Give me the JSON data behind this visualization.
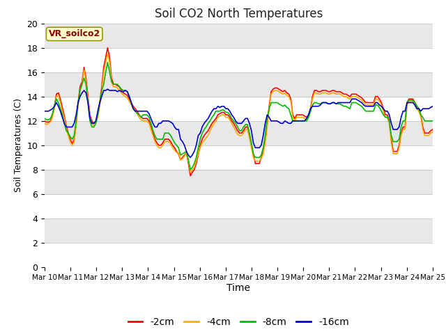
{
  "title": "Soil CO2 North Temperatures",
  "xlabel": "Time",
  "ylabel": "Soil Temperatures (C)",
  "ylim": [
    0,
    20
  ],
  "bg_color": "#e8e8e8",
  "fig_color": "#ffffff",
  "annotation_label": "VR_soilco2",
  "annotation_color": "#880000",
  "annotation_bg": "#ffffcc",
  "annotation_border": "#999900",
  "xtick_labels": [
    "Mar 10",
    "Mar 11",
    "Mar 12",
    "Mar 13",
    "Mar 14",
    "Mar 15",
    "Mar 16",
    "Mar 17",
    "Mar 18",
    "Mar 19",
    "Mar 20",
    "Mar 21",
    "Mar 22",
    "Mar 23",
    "Mar 24",
    "Mar 25"
  ],
  "legend_entries": [
    "-2cm",
    "-4cm",
    "-8cm",
    "-16cm"
  ],
  "line_colors": [
    "#ff0000",
    "#ffaa00",
    "#00bb00",
    "#0000cc"
  ],
  "d2cm": [
    12.0,
    11.9,
    11.9,
    12.0,
    12.5,
    13.2,
    14.2,
    14.3,
    13.8,
    13.1,
    12.4,
    11.6,
    11.0,
    10.5,
    10.1,
    10.5,
    11.8,
    13.5,
    14.8,
    15.2,
    16.4,
    15.5,
    14.0,
    12.5,
    12.0,
    11.8,
    11.9,
    12.5,
    13.5,
    14.8,
    16.4,
    17.2,
    18.0,
    17.2,
    15.5,
    15.0,
    15.0,
    14.9,
    14.8,
    14.5,
    14.3,
    14.2,
    14.1,
    13.8,
    13.5,
    13.2,
    13.0,
    12.8,
    12.5,
    12.3,
    12.2,
    12.2,
    12.2,
    12.0,
    11.5,
    11.0,
    10.5,
    10.2,
    10.0,
    10.0,
    10.2,
    10.5,
    10.5,
    10.5,
    10.3,
    10.0,
    9.8,
    9.5,
    9.3,
    8.8,
    9.0,
    9.2,
    9.4,
    8.5,
    7.5,
    7.8,
    8.0,
    8.5,
    9.2,
    10.0,
    10.5,
    10.8,
    11.0,
    11.2,
    11.5,
    11.8,
    12.0,
    12.2,
    12.5,
    12.6,
    12.7,
    12.7,
    12.5,
    12.5,
    12.3,
    12.0,
    11.8,
    11.5,
    11.2,
    11.0,
    11.0,
    11.2,
    11.5,
    11.5,
    10.8,
    10.0,
    9.2,
    8.5,
    8.5,
    8.5,
    9.0,
    9.5,
    10.5,
    11.8,
    13.2,
    14.4,
    14.6,
    14.7,
    14.7,
    14.6,
    14.5,
    14.4,
    14.5,
    14.3,
    14.2,
    13.8,
    12.5,
    12.2,
    12.5,
    12.5,
    12.5,
    12.5,
    12.4,
    12.3,
    12.5,
    13.0,
    14.0,
    14.5,
    14.5,
    14.4,
    14.4,
    14.5,
    14.5,
    14.5,
    14.4,
    14.4,
    14.5,
    14.5,
    14.4,
    14.4,
    14.4,
    14.3,
    14.2,
    14.2,
    14.1,
    14.0,
    14.2,
    14.2,
    14.2,
    14.1,
    14.0,
    13.9,
    13.7,
    13.5,
    13.5,
    13.5,
    13.5,
    13.5,
    14.0,
    14.0,
    13.8,
    13.5,
    13.0,
    12.5,
    12.5,
    12.0,
    10.5,
    9.5,
    9.5,
    9.5,
    10.0,
    11.0,
    11.5,
    11.5,
    13.5,
    13.8,
    13.8,
    13.8,
    13.5,
    13.2,
    13.0,
    12.5,
    11.5,
    11.0,
    11.0,
    11.0,
    11.2,
    11.3
  ],
  "d4cm": [
    11.8,
    11.7,
    11.8,
    11.9,
    12.3,
    13.0,
    14.0,
    14.1,
    13.5,
    12.8,
    12.2,
    11.4,
    10.8,
    10.3,
    10.0,
    10.3,
    11.6,
    13.2,
    14.5,
    15.0,
    16.2,
    15.2,
    13.8,
    12.3,
    11.8,
    11.6,
    11.8,
    12.3,
    13.2,
    14.5,
    16.0,
    16.8,
    17.5,
    16.8,
    15.2,
    14.8,
    14.8,
    14.7,
    14.5,
    14.3,
    14.1,
    14.0,
    13.9,
    13.6,
    13.3,
    13.0,
    12.8,
    12.6,
    12.3,
    12.1,
    12.0,
    12.0,
    12.0,
    11.8,
    11.3,
    10.8,
    10.3,
    10.0,
    9.8,
    9.8,
    10.0,
    10.3,
    10.3,
    10.3,
    10.1,
    9.8,
    9.6,
    9.4,
    9.4,
    8.8,
    8.9,
    9.1,
    9.4,
    8.6,
    7.8,
    8.0,
    8.2,
    8.7,
    9.3,
    9.8,
    10.2,
    10.4,
    10.6,
    10.8,
    11.2,
    11.5,
    11.8,
    12.0,
    12.3,
    12.4,
    12.5,
    12.5,
    12.3,
    12.3,
    12.1,
    11.8,
    11.5,
    11.2,
    10.9,
    10.8,
    10.8,
    11.0,
    11.3,
    11.3,
    10.6,
    9.8,
    9.0,
    8.7,
    8.7,
    8.7,
    8.9,
    9.3,
    10.2,
    11.5,
    13.0,
    14.2,
    14.4,
    14.5,
    14.5,
    14.4,
    14.3,
    14.2,
    14.3,
    14.1,
    14.0,
    13.6,
    12.3,
    12.0,
    12.3,
    12.3,
    12.3,
    12.3,
    12.2,
    12.1,
    12.3,
    12.8,
    13.8,
    14.3,
    14.3,
    14.2,
    14.2,
    14.3,
    14.3,
    14.3,
    14.2,
    14.2,
    14.3,
    14.3,
    14.2,
    14.2,
    14.2,
    14.1,
    14.0,
    14.0,
    13.9,
    13.8,
    14.0,
    14.0,
    14.0,
    13.9,
    13.8,
    13.7,
    13.5,
    13.3,
    13.3,
    13.3,
    13.3,
    13.3,
    13.8,
    13.8,
    13.6,
    13.3,
    12.8,
    12.3,
    12.3,
    11.8,
    10.2,
    9.3,
    9.3,
    9.3,
    9.8,
    10.8,
    11.3,
    11.3,
    13.3,
    13.6,
    13.6,
    13.6,
    13.3,
    13.0,
    12.8,
    12.3,
    11.3,
    10.8,
    10.8,
    10.8,
    11.0,
    11.1
  ],
  "d8cm": [
    12.2,
    12.1,
    12.1,
    12.2,
    12.6,
    13.3,
    13.8,
    13.5,
    13.0,
    12.5,
    11.8,
    11.2,
    11.0,
    10.7,
    10.5,
    10.8,
    12.0,
    13.5,
    14.5,
    15.0,
    15.5,
    15.0,
    13.5,
    12.0,
    11.5,
    11.5,
    11.8,
    12.5,
    13.5,
    14.5,
    15.0,
    16.0,
    16.8,
    16.0,
    15.2,
    15.0,
    15.0,
    15.0,
    14.8,
    14.6,
    14.5,
    14.5,
    14.4,
    14.0,
    13.5,
    13.0,
    12.8,
    12.6,
    12.5,
    12.3,
    12.5,
    12.5,
    12.5,
    12.3,
    11.8,
    11.2,
    10.8,
    10.5,
    10.5,
    10.5,
    10.5,
    11.0,
    11.0,
    11.0,
    10.8,
    10.5,
    10.2,
    10.0,
    9.8,
    9.2,
    9.3,
    9.4,
    9.5,
    8.8,
    8.0,
    8.2,
    8.5,
    9.0,
    9.8,
    10.5,
    11.0,
    11.3,
    11.5,
    11.8,
    12.0,
    12.3,
    12.5,
    12.8,
    12.8,
    12.8,
    12.9,
    12.9,
    12.7,
    12.7,
    12.5,
    12.2,
    12.0,
    11.8,
    11.5,
    11.2,
    11.2,
    11.5,
    11.7,
    11.7,
    11.0,
    10.2,
    9.3,
    9.0,
    9.0,
    9.0,
    9.2,
    9.8,
    10.8,
    12.2,
    13.0,
    13.5,
    13.5,
    13.5,
    13.5,
    13.4,
    13.3,
    13.2,
    13.3,
    13.1,
    13.0,
    12.5,
    12.0,
    12.0,
    12.0,
    12.0,
    12.0,
    12.0,
    12.0,
    12.0,
    12.3,
    12.8,
    13.3,
    13.5,
    13.5,
    13.4,
    13.4,
    13.5,
    13.5,
    13.5,
    13.4,
    13.4,
    13.5,
    13.5,
    13.4,
    13.4,
    13.4,
    13.3,
    13.2,
    13.2,
    13.1,
    13.0,
    13.5,
    13.5,
    13.5,
    13.4,
    13.3,
    13.2,
    13.0,
    12.8,
    12.8,
    12.8,
    12.8,
    12.8,
    13.3,
    13.3,
    13.1,
    12.8,
    12.5,
    12.3,
    12.3,
    12.0,
    10.8,
    10.3,
    10.3,
    10.3,
    10.5,
    11.5,
    12.0,
    12.0,
    13.5,
    13.7,
    13.7,
    13.7,
    13.5,
    13.2,
    13.0,
    12.5,
    12.3,
    12.0,
    12.0,
    12.0,
    12.0,
    12.0
  ],
  "d16cm": [
    12.8,
    12.8,
    12.8,
    12.9,
    13.0,
    13.2,
    13.5,
    13.2,
    12.8,
    12.3,
    11.8,
    11.5,
    11.5,
    11.5,
    11.5,
    11.8,
    12.5,
    13.5,
    14.0,
    14.3,
    14.5,
    14.3,
    13.5,
    12.2,
    11.8,
    11.8,
    12.0,
    12.8,
    13.5,
    14.0,
    14.5,
    14.5,
    14.6,
    14.5,
    14.5,
    14.5,
    14.5,
    14.4,
    14.5,
    14.4,
    14.4,
    14.5,
    14.4,
    14.0,
    13.5,
    13.0,
    12.8,
    12.8,
    12.8,
    12.8,
    12.8,
    12.8,
    12.8,
    12.6,
    12.2,
    11.8,
    11.5,
    11.5,
    11.8,
    11.8,
    12.0,
    12.0,
    12.0,
    12.0,
    11.9,
    11.8,
    11.5,
    11.3,
    11.3,
    10.5,
    10.3,
    10.0,
    9.5,
    9.2,
    9.0,
    9.2,
    9.5,
    10.0,
    10.8,
    11.0,
    11.5,
    11.8,
    12.0,
    12.2,
    12.5,
    12.8,
    13.0,
    13.0,
    13.2,
    13.1,
    13.2,
    13.2,
    13.0,
    13.0,
    12.8,
    12.5,
    12.3,
    12.0,
    11.8,
    11.8,
    11.8,
    12.0,
    12.2,
    12.2,
    11.8,
    11.2,
    10.2,
    9.8,
    9.8,
    9.8,
    10.0,
    10.8,
    11.8,
    12.5,
    12.3,
    12.0,
    12.0,
    12.0,
    12.0,
    11.9,
    11.8,
    11.8,
    12.0,
    11.9,
    11.8,
    11.8,
    12.0,
    12.0,
    12.0,
    12.0,
    12.0,
    12.0,
    12.0,
    12.2,
    12.5,
    13.0,
    13.2,
    13.2,
    13.2,
    13.2,
    13.3,
    13.5,
    13.5,
    13.5,
    13.4,
    13.4,
    13.5,
    13.5,
    13.4,
    13.5,
    13.5,
    13.5,
    13.5,
    13.5,
    13.5,
    13.5,
    13.8,
    13.8,
    13.8,
    13.7,
    13.6,
    13.5,
    13.3,
    13.2,
    13.2,
    13.2,
    13.2,
    13.2,
    13.5,
    13.5,
    13.3,
    13.2,
    13.0,
    12.8,
    12.8,
    12.5,
    11.8,
    11.3,
    11.3,
    11.3,
    11.5,
    12.3,
    12.8,
    12.8,
    13.5,
    13.5,
    13.5,
    13.5,
    13.3,
    13.0,
    13.0,
    12.8,
    13.0,
    13.0,
    13.0,
    13.0,
    13.1,
    13.2
  ]
}
